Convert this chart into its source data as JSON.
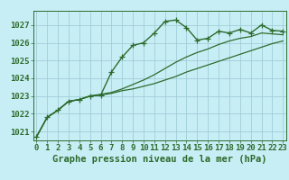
{
  "title": "Graphe pression niveau de la mer (hPa)",
  "bg_color": "#c8eef5",
  "plot_bg_color": "#c8eef5",
  "grid_color": "#a0cdd8",
  "line_color": "#2d6b2d",
  "border_color": "#2d6b2d",
  "tick_color": "#2d6b2d",
  "title_color": "#2d6b2d",
  "ylim": [
    1020.5,
    1027.8
  ],
  "yticks": [
    1021,
    1022,
    1023,
    1024,
    1025,
    1026,
    1027
  ],
  "xlim": [
    -0.3,
    23.3
  ],
  "xticks": [
    0,
    1,
    2,
    3,
    4,
    5,
    6,
    7,
    8,
    9,
    10,
    11,
    12,
    13,
    14,
    15,
    16,
    17,
    18,
    19,
    20,
    21,
    22,
    23
  ],
  "series1_x": [
    0,
    1,
    2,
    3,
    4,
    5,
    6,
    7,
    8,
    9,
    10,
    11,
    12,
    13,
    14,
    15,
    16,
    17,
    18,
    19,
    20,
    21,
    22,
    23
  ],
  "series1_y": [
    1020.7,
    1021.8,
    1022.2,
    1022.7,
    1022.8,
    1023.0,
    1023.05,
    1024.35,
    1025.2,
    1025.85,
    1026.0,
    1026.55,
    1027.2,
    1027.28,
    1026.85,
    1026.15,
    1026.25,
    1026.65,
    1026.55,
    1026.75,
    1026.55,
    1027.0,
    1026.7,
    1026.65
  ],
  "series2_x": [
    0,
    1,
    2,
    3,
    4,
    5,
    6,
    7,
    8,
    9,
    10,
    11,
    12,
    13,
    14,
    15,
    16,
    17,
    18,
    19,
    20,
    21,
    22,
    23
  ],
  "series2_y": [
    1020.7,
    1021.8,
    1022.2,
    1022.7,
    1022.8,
    1023.0,
    1023.05,
    1023.15,
    1023.3,
    1023.4,
    1023.55,
    1023.7,
    1023.9,
    1024.1,
    1024.35,
    1024.55,
    1024.75,
    1024.95,
    1025.15,
    1025.35,
    1025.55,
    1025.75,
    1025.95,
    1026.1
  ],
  "series3_x": [
    0,
    1,
    2,
    3,
    4,
    5,
    6,
    7,
    8,
    9,
    10,
    11,
    12,
    13,
    14,
    15,
    16,
    17,
    18,
    19,
    20,
    21,
    22,
    23
  ],
  "series3_y": [
    1020.7,
    1021.8,
    1022.2,
    1022.7,
    1022.8,
    1023.0,
    1023.1,
    1023.2,
    1023.4,
    1023.65,
    1023.9,
    1024.2,
    1024.55,
    1024.9,
    1025.2,
    1025.45,
    1025.65,
    1025.9,
    1026.1,
    1026.25,
    1026.35,
    1026.55,
    1026.5,
    1026.45
  ],
  "tick_fontsize": 6.5,
  "title_fontsize": 7.5
}
